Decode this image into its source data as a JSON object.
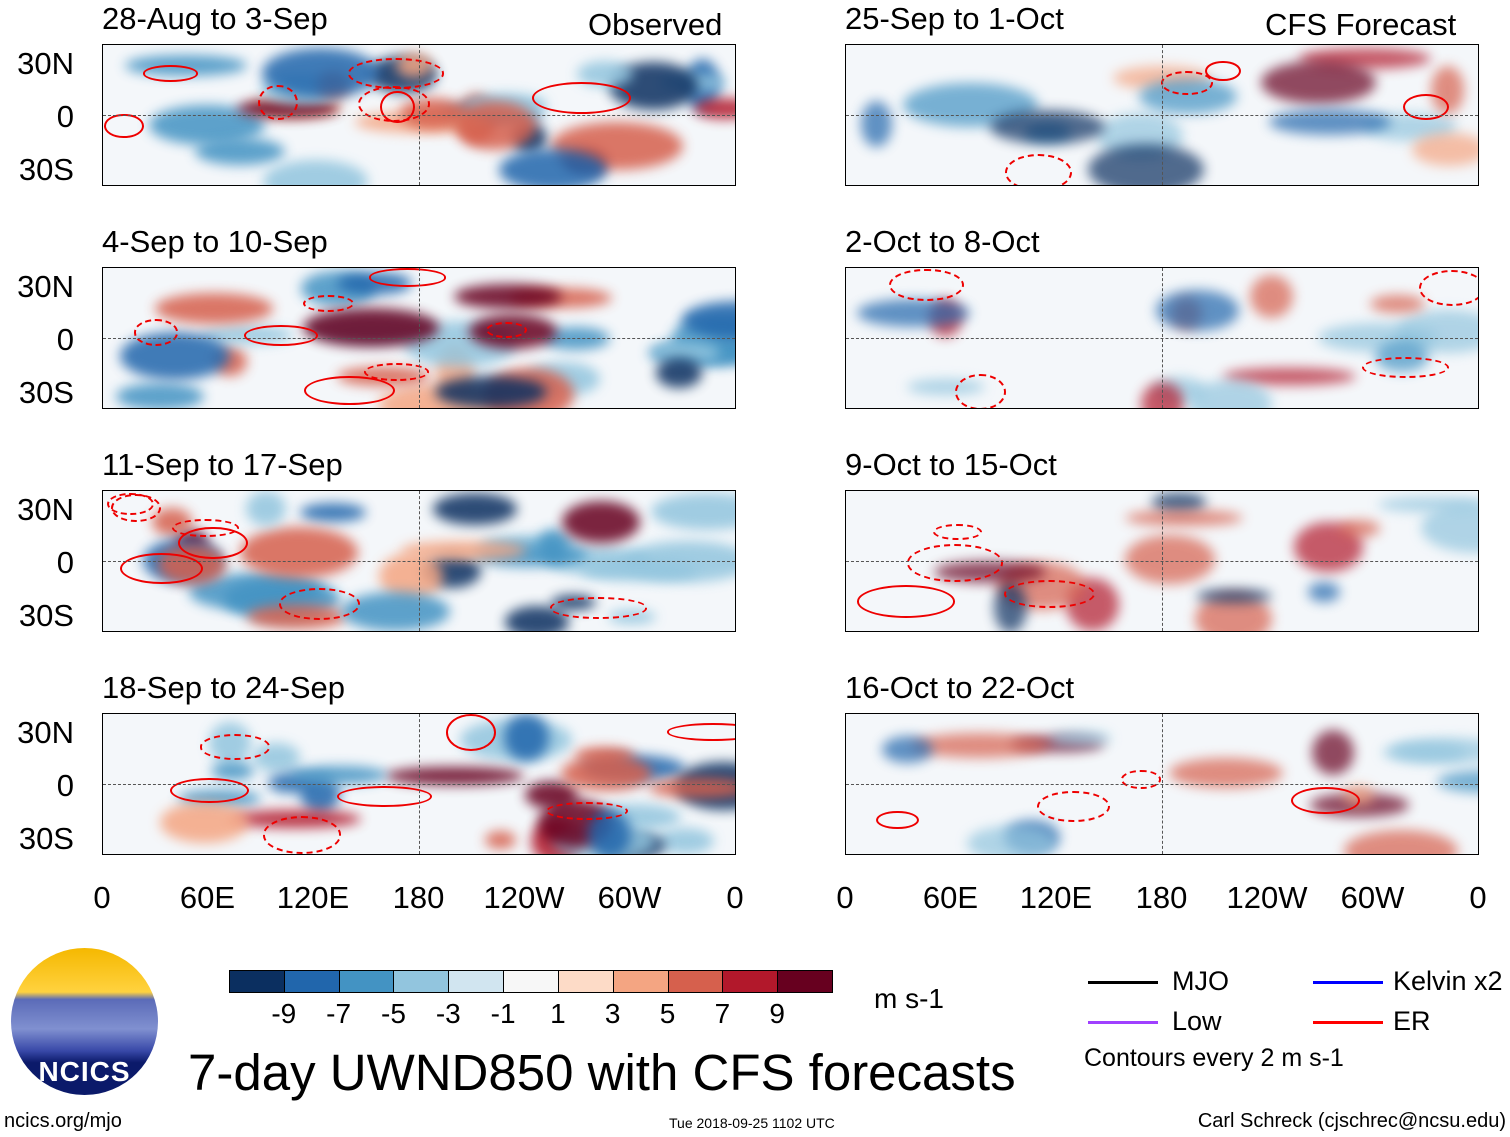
{
  "header": {
    "left_label": "Observed",
    "right_label": "CFS Forecast"
  },
  "panels": {
    "observed": [
      {
        "title": "28-Aug to 3-Sep"
      },
      {
        "title": "4-Sep to 10-Sep"
      },
      {
        "title": "11-Sep to 17-Sep"
      },
      {
        "title": "18-Sep to 24-Sep"
      }
    ],
    "forecast": [
      {
        "title": "25-Sep to 1-Oct"
      },
      {
        "title": "2-Oct to 8-Oct"
      },
      {
        "title": "9-Oct to 15-Oct"
      },
      {
        "title": "16-Oct to 22-Oct"
      }
    ]
  },
  "axes": {
    "lat_labels": [
      "30N",
      "0",
      "30S"
    ],
    "lon_labels": [
      "0",
      "60E",
      "120E",
      "180",
      "120W",
      "60W",
      "0"
    ]
  },
  "colorbar": {
    "colors": [
      "#0b2f60",
      "#2166ac",
      "#4393c3",
      "#92c5de",
      "#d1e5f0",
      "#f7f7f7",
      "#fddbc7",
      "#f4a582",
      "#d6604d",
      "#b2182b",
      "#67001f"
    ],
    "labels": [
      "-9",
      "-7",
      "-5",
      "-3",
      "-1",
      "1",
      "3",
      "5",
      "7",
      "9"
    ],
    "units": "m s-1"
  },
  "legend": {
    "items": [
      {
        "label": "MJO",
        "color": "#000000"
      },
      {
        "label": "Kelvin x2",
        "color": "#0000ff"
      },
      {
        "label": "Low",
        "color": "#a040ff"
      },
      {
        "label": "ER",
        "color": "#ff0000"
      }
    ],
    "note": "Contours every 2 m s-1"
  },
  "logo": {
    "text": "NCICS"
  },
  "title": "7-day UWND850 with CFS forecasts",
  "footer": {
    "url": "ncics.org/mjo",
    "timestamp": "Tue 2018-09-25 1102 UTC",
    "credit": "Carl Schreck (cjschrec@ncsu.edu)"
  }
}
